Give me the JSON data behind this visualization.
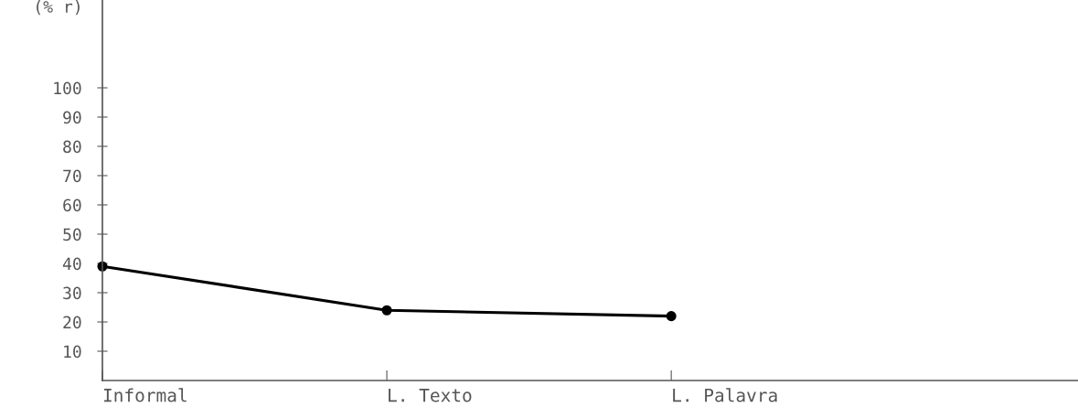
{
  "chart_data": {
    "type": "line",
    "ylabel": "(% r)",
    "categories": [
      "Informal",
      "L. Texto",
      "L. Palavra"
    ],
    "series": [
      {
        "color": "#000000",
        "values": [
          39,
          24,
          22
        ]
      }
    ],
    "ylim": [
      0,
      130
    ],
    "yticks": [
      10,
      20,
      30,
      40,
      50,
      60,
      70,
      80,
      90,
      100
    ],
    "marker": "circle",
    "line_style": "solid",
    "grid": false,
    "legend": false
  }
}
